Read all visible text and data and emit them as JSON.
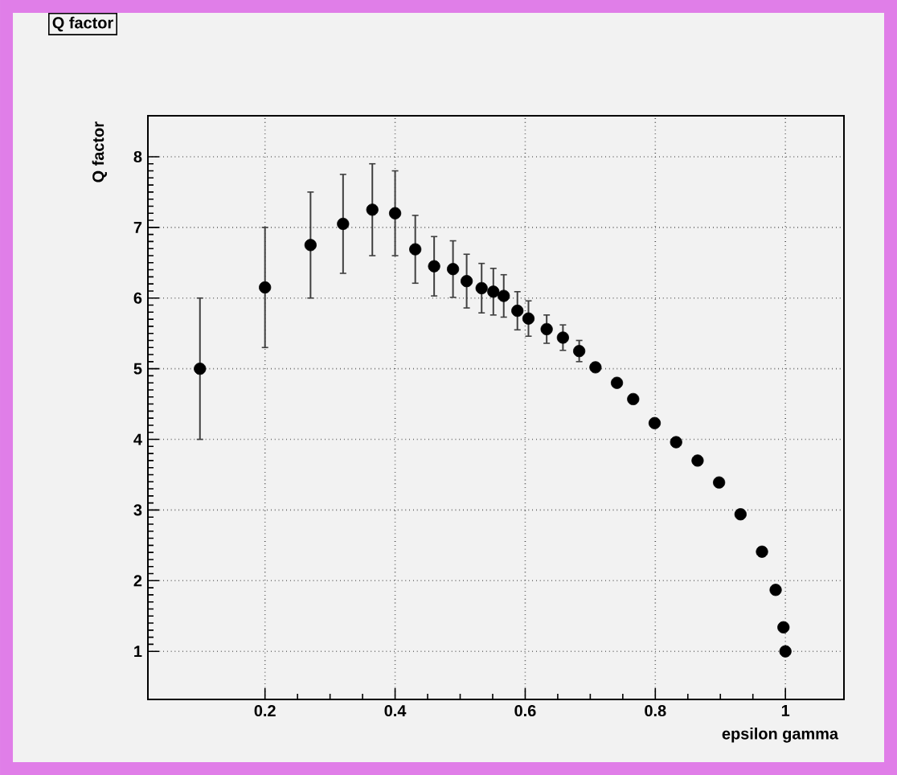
{
  "chart_data": {
    "type": "scatter",
    "title": "Q factor",
    "xlabel": "epsilon gamma",
    "ylabel": "Q factor",
    "x": [
      0.1,
      0.2,
      0.27,
      0.32,
      0.365,
      0.4,
      0.431,
      0.46,
      0.489,
      0.51,
      0.533,
      0.551,
      0.567,
      0.588,
      0.605,
      0.633,
      0.658,
      0.683,
      0.708,
      0.741,
      0.766,
      0.799,
      0.832,
      0.865,
      0.898,
      0.931,
      0.964,
      0.985,
      0.997,
      1.0
    ],
    "values": [
      5.0,
      6.15,
      6.75,
      7.05,
      7.25,
      7.2,
      6.69,
      6.45,
      6.41,
      6.24,
      6.14,
      6.09,
      6.03,
      5.82,
      5.71,
      5.56,
      5.44,
      5.25,
      5.02,
      4.8,
      4.57,
      4.23,
      3.96,
      3.7,
      3.39,
      2.94,
      2.41,
      1.87,
      1.34,
      1.0
    ],
    "errors": [
      1.0,
      0.85,
      0.75,
      0.7,
      0.65,
      0.6,
      0.48,
      0.42,
      0.4,
      0.38,
      0.35,
      0.33,
      0.3,
      0.27,
      0.25,
      0.2,
      0.18,
      0.15,
      null,
      null,
      null,
      null,
      null,
      null,
      null,
      null,
      null,
      null,
      null,
      null
    ],
    "color": "#000000",
    "marker": "circle",
    "xlim": [
      0.02,
      1.09
    ],
    "ylim": [
      0.32,
      8.58
    ],
    "xticks": [
      0.2,
      0.4,
      0.6,
      0.8,
      1
    ],
    "yticks": [
      1,
      2,
      3,
      4,
      5,
      6,
      7,
      8
    ],
    "grid": true
  }
}
